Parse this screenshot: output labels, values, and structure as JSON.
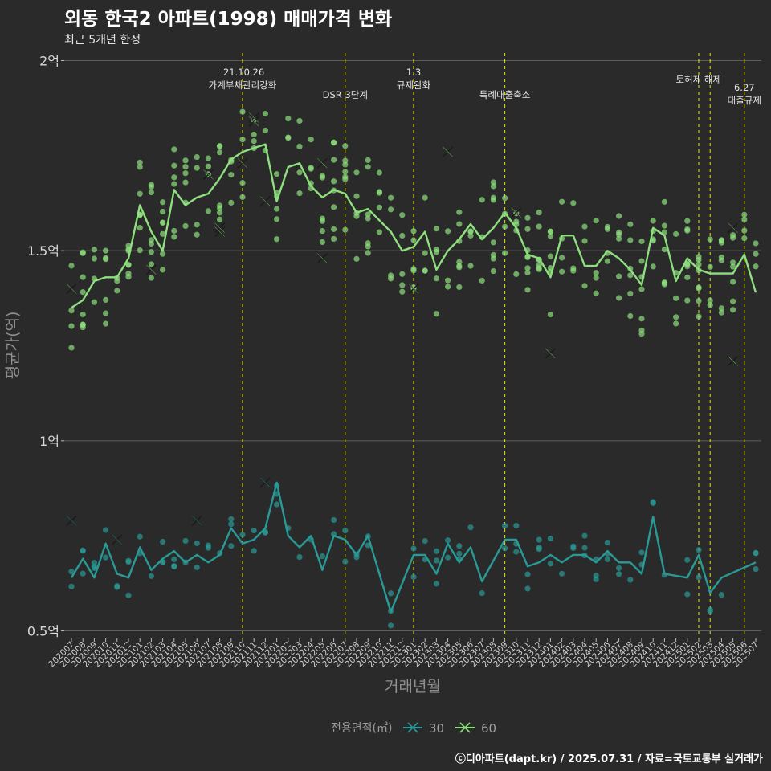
{
  "title": "외동 한국2 아파트(1998) 매매가격 변화",
  "subtitle": "최근 5개년 한정",
  "caption": "ⓒ디아파트(dapt.kr) / 2025.07.31 / 자료=국토교통부 실거래가",
  "chart_data": {
    "type": "line",
    "xlabel": "거래년월",
    "ylabel": "평균가(억)",
    "categories": [
      "202007",
      "202008",
      "202009",
      "202010",
      "202011",
      "202012",
      "202101",
      "202102",
      "202103",
      "202104",
      "202105",
      "202106",
      "202107",
      "202108",
      "202109",
      "202110",
      "202111",
      "202112",
      "202201",
      "202202",
      "202203",
      "202204",
      "202205",
      "202206",
      "202207",
      "202208",
      "202209",
      "202210",
      "202211",
      "202212",
      "202301",
      "202302",
      "202303",
      "202304",
      "202305",
      "202306",
      "202307",
      "202308",
      "202309",
      "202310",
      "202311",
      "202312",
      "202401",
      "202402",
      "202403",
      "202404",
      "202405",
      "202406",
      "202407",
      "202408",
      "202409",
      "202410",
      "202411",
      "202412",
      "202501",
      "202502",
      "202503",
      "202504",
      "202505",
      "202506",
      "202507"
    ],
    "ylim": [
      0.48,
      2.02
    ],
    "yticks": [
      {
        "value": 0.5,
        "label": "0.5억"
      },
      {
        "value": 1.0,
        "label": "1억"
      },
      {
        "value": 1.5,
        "label": "1.5억"
      },
      {
        "value": 2.0,
        "label": "2억"
      }
    ],
    "grid": true,
    "legend": {
      "title": "전용면적(㎡)",
      "position": "bottom"
    },
    "series": [
      {
        "name": "30",
        "color": "#2a9a96",
        "values": [
          0.64,
          0.69,
          0.64,
          0.73,
          0.65,
          0.64,
          0.72,
          0.66,
          0.69,
          0.71,
          0.68,
          0.7,
          0.68,
          0.7,
          0.77,
          0.73,
          0.74,
          0.77,
          0.89,
          0.75,
          0.72,
          0.75,
          0.66,
          0.75,
          0.74,
          0.7,
          0.75,
          null,
          0.55,
          null,
          0.7,
          0.7,
          0.65,
          0.73,
          0.68,
          0.72,
          0.63,
          null,
          0.74,
          0.74,
          0.67,
          0.68,
          0.7,
          0.68,
          0.7,
          0.7,
          0.68,
          0.71,
          0.68,
          0.68,
          0.65,
          0.8,
          0.65,
          null,
          0.64,
          0.7,
          0.6,
          0.64,
          null,
          null,
          0.68
        ],
        "maxima": [
          {
            "x": "202007",
            "y": 0.79
          },
          {
            "x": "202011",
            "y": 0.74
          },
          {
            "x": "202106",
            "y": 0.79
          },
          {
            "x": "202112",
            "y": 0.89
          }
        ]
      },
      {
        "name": "60",
        "color": "#8ee07e",
        "values": [
          1.35,
          1.37,
          1.42,
          1.43,
          1.43,
          1.48,
          1.62,
          1.55,
          1.5,
          1.66,
          1.62,
          1.64,
          1.65,
          1.69,
          1.74,
          1.76,
          1.77,
          1.78,
          1.63,
          1.72,
          1.73,
          1.67,
          1.64,
          1.66,
          1.65,
          1.6,
          1.61,
          1.58,
          1.55,
          1.5,
          1.51,
          1.55,
          1.45,
          1.5,
          1.53,
          1.57,
          1.53,
          1.56,
          1.6,
          1.56,
          1.49,
          1.48,
          1.43,
          1.54,
          1.54,
          1.46,
          1.46,
          1.5,
          1.48,
          1.45,
          1.41,
          1.56,
          1.54,
          1.42,
          1.48,
          1.45,
          1.44,
          1.44,
          1.44,
          1.49,
          1.39
        ],
        "maxima": [
          {
            "x": "202007",
            "y": 1.4
          },
          {
            "x": "202102",
            "y": 1.45
          },
          {
            "x": "202107",
            "y": 1.7
          },
          {
            "x": "202108",
            "y": 1.55
          },
          {
            "x": "202108",
            "y": 1.56
          },
          {
            "x": "202110",
            "y": 1.73
          },
          {
            "x": "202111",
            "y": 1.85
          },
          {
            "x": "202111",
            "y": 1.84
          },
          {
            "x": "202112",
            "y": 1.63
          },
          {
            "x": "202205",
            "y": 1.73
          },
          {
            "x": "202205",
            "y": 1.48
          },
          {
            "x": "202301",
            "y": 1.4
          },
          {
            "x": "202304",
            "y": 1.76
          },
          {
            "x": "202310",
            "y": 1.6
          },
          {
            "x": "202401",
            "y": 1.23
          },
          {
            "x": "202505",
            "y": 1.56
          },
          {
            "x": "202505",
            "y": 1.21
          }
        ]
      }
    ],
    "annotations": [
      {
        "x": "202110",
        "lines": [
          "'21.10.26",
          "가계부채관리강화"
        ],
        "row": 0
      },
      {
        "x": "202207",
        "lines": [
          "DSR 3단계"
        ],
        "row": 2
      },
      {
        "x": "202301",
        "lines": [
          "1.3",
          "규제완화"
        ],
        "row": 0
      },
      {
        "x": "202309",
        "lines": [
          "특례대출축소"
        ],
        "row": 2
      },
      {
        "x": "202502",
        "lines": [
          "토허제 해제"
        ],
        "row": 1,
        "anchor": "end"
      },
      {
        "x": "202503",
        "lines": [],
        "row": 1
      },
      {
        "x": "202506",
        "lines": [
          "6.27",
          "대출규제"
        ],
        "row": 1
      }
    ]
  }
}
